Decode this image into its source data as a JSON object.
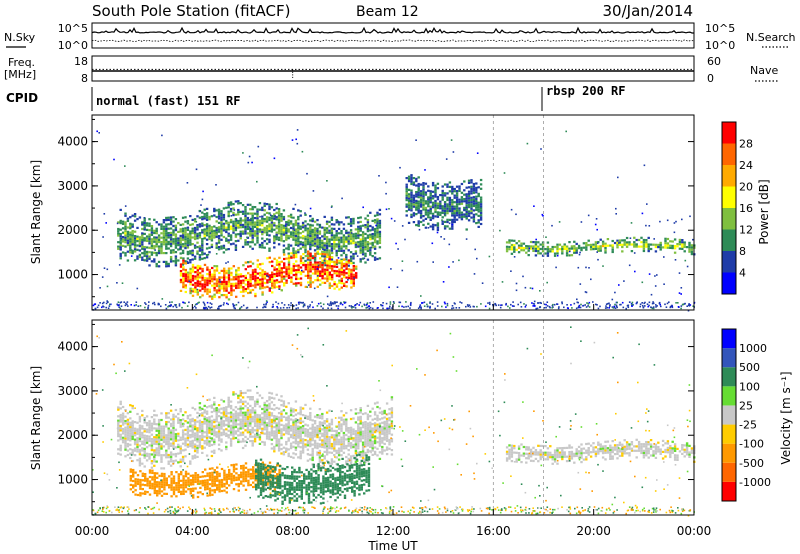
{
  "header": {
    "station": "South Pole Station (fitACF)",
    "beam": "Beam 12",
    "date": "30/Jan/2014"
  },
  "side_labels": {
    "nsky": "N.Sky",
    "nsearch": "N.Search",
    "freq": "Freq.",
    "freq_unit": "[MHz]",
    "nave": "Nave",
    "cpid": "CPID"
  },
  "cpid_segments": [
    {
      "label": "normal (fast) 151 RF",
      "start_hour": 0
    },
    {
      "label": "rbsp 200 RF",
      "start_hour": 18
    }
  ],
  "noise_panel": {
    "left_ticks": [
      "10^5",
      "10^0"
    ],
    "right_ticks": [
      "10^5",
      "10^0"
    ]
  },
  "freq_panel": {
    "left_ticks": [
      "18",
      "8"
    ],
    "right_ticks": [
      "60",
      "0"
    ],
    "freq_mhz": 12,
    "nave": 28
  },
  "xaxis": {
    "label": "Time UT",
    "ticks": [
      "00:00",
      "04:00",
      "08:00",
      "12:00",
      "16:00",
      "20:00",
      "00:00"
    ],
    "range_hours": [
      0,
      24
    ]
  },
  "chart_data": [
    {
      "type": "heatmap",
      "name": "power",
      "ylabel": "Slant Range [km]",
      "yticks": [
        "1000",
        "2000",
        "3000",
        "4000"
      ],
      "ylim": [
        200,
        4600
      ],
      "colorbar": {
        "label": "Power [dB]",
        "ticks": [
          "28",
          "24",
          "20",
          "16",
          "12",
          "8",
          "4"
        ],
        "colors": [
          "#0000ff",
          "#1f3ca8",
          "#2e8b57",
          "#7fbf3f",
          "#ffff00",
          "#ffaa00",
          "#ff6600",
          "#ff0000"
        ]
      },
      "echo_bands": [
        {
          "t_start": 1.0,
          "t_end": 11.5,
          "range_km": [
            1400,
            2500
          ],
          "power_db": 10
        },
        {
          "t_start": 3.5,
          "t_end": 10.5,
          "range_km": [
            600,
            1400
          ],
          "power_db": 24
        },
        {
          "t_start": 12.5,
          "t_end": 15.5,
          "range_km": [
            2200,
            3300
          ],
          "power_db": 8
        },
        {
          "t_start": 16.5,
          "t_end": 24.0,
          "range_km": [
            1500,
            1800
          ],
          "power_db": 12
        }
      ]
    },
    {
      "type": "heatmap",
      "name": "velocity",
      "ylabel": "Slant Range [km]",
      "yticks": [
        "1000",
        "2000",
        "3000",
        "4000"
      ],
      "ylim": [
        200,
        4600
      ],
      "colorbar": {
        "label": "Velocity [m s⁻¹]",
        "ticks": [
          "1000",
          "500",
          "100",
          "25",
          "-25",
          "-100",
          "-500",
          "-1000"
        ],
        "colors": [
          "#ff0000",
          "#ff6600",
          "#ff9900",
          "#ffcc00",
          "#c8c8c8",
          "#66dd33",
          "#2e8b57",
          "#3355bb",
          "#0000ff"
        ]
      },
      "echo_bands": [
        {
          "t_start": 1.0,
          "t_end": 12.0,
          "range_km": [
            1500,
            2800
          ],
          "velocity": 0
        },
        {
          "t_start": 1.5,
          "t_end": 7.5,
          "range_km": [
            700,
            1300
          ],
          "velocity": -300
        },
        {
          "t_start": 6.5,
          "t_end": 11.0,
          "range_km": [
            600,
            1500
          ],
          "velocity": 400
        },
        {
          "t_start": 16.5,
          "t_end": 24.0,
          "range_km": [
            1450,
            1850
          ],
          "velocity": 0
        }
      ]
    }
  ]
}
